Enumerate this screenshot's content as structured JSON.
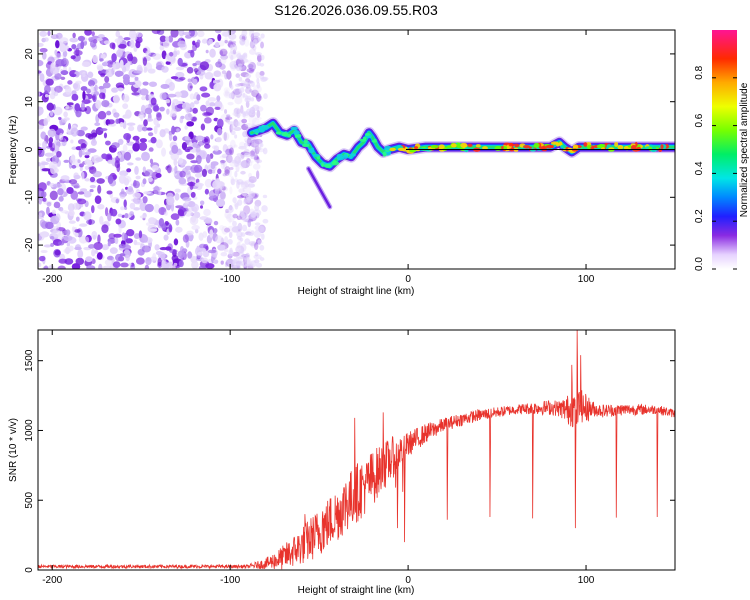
{
  "title": "S126.2026.036.09.55.R03",
  "chart_data": [
    {
      "type": "heatmap",
      "name": "spectrogram",
      "xlabel": "Height of straight line (km)",
      "ylabel": "Frequency (Hz)",
      "xlim": [
        -208,
        150
      ],
      "ylim": [
        -25,
        25
      ],
      "xticks": [
        -200,
        -100,
        0,
        100
      ],
      "yticks": [
        -20,
        -10,
        0,
        10,
        20
      ],
      "colorbar": {
        "label": "Normalized spectral amplitude",
        "range": [
          0,
          1
        ],
        "ticks": [
          "0.0",
          "0.2",
          "0.4",
          "0.6",
          "0.8"
        ]
      },
      "noise_region_x": [
        -208,
        -88
      ],
      "line_trace": [
        [
          -88,
          3.5
        ],
        [
          -80,
          4.5
        ],
        [
          -76,
          5.5
        ],
        [
          -72,
          3.5
        ],
        [
          -68,
          3.0
        ],
        [
          -64,
          4.0
        ],
        [
          -60,
          1.5
        ],
        [
          -56,
          1.0
        ],
        [
          -52,
          -1.5
        ],
        [
          -48,
          -3.0
        ],
        [
          -44,
          -3.5
        ],
        [
          -40,
          -2.0
        ],
        [
          -36,
          -1.0
        ],
        [
          -32,
          -1.5
        ],
        [
          -28,
          0.5
        ],
        [
          -25,
          1.5
        ],
        [
          -22,
          3.5
        ],
        [
          -20,
          2.5
        ],
        [
          -17,
          0.5
        ],
        [
          -14,
          -0.5
        ],
        [
          -10,
          0.0
        ],
        [
          -5,
          0.5
        ],
        [
          0,
          0.0
        ],
        [
          10,
          0.5
        ],
        [
          20,
          0.5
        ],
        [
          40,
          0.5
        ],
        [
          60,
          0.5
        ],
        [
          80,
          0.5
        ],
        [
          85,
          1.5
        ],
        [
          88,
          0.5
        ],
        [
          92,
          -0.5
        ],
        [
          96,
          0.5
        ],
        [
          110,
          0.5
        ],
        [
          150,
          0.5
        ]
      ],
      "branch_trace": [
        [
          -56,
          -4
        ],
        [
          -50,
          -8
        ],
        [
          -44,
          -12
        ]
      ]
    },
    {
      "type": "line",
      "name": "snr",
      "xlabel": "Height of straight line (km)",
      "ylabel": "SNR (10 * v/v)",
      "xlim": [
        -208,
        150
      ],
      "ylim": [
        0,
        1720
      ],
      "xticks": [
        -200,
        -100,
        0,
        100
      ],
      "yticks": [
        0,
        500,
        1000,
        1500
      ],
      "series_color": "#e8332c",
      "envelope": [
        [
          -208,
          25
        ],
        [
          -90,
          25
        ],
        [
          -80,
          45
        ],
        [
          -70,
          90
        ],
        [
          -60,
          170
        ],
        [
          -50,
          270
        ],
        [
          -40,
          400
        ],
        [
          -30,
          540
        ],
        [
          -20,
          660
        ],
        [
          -10,
          790
        ],
        [
          0,
          900
        ],
        [
          10,
          980
        ],
        [
          20,
          1040
        ],
        [
          30,
          1080
        ],
        [
          40,
          1110
        ],
        [
          50,
          1130
        ],
        [
          60,
          1150
        ],
        [
          70,
          1160
        ],
        [
          80,
          1165
        ],
        [
          90,
          1150
        ],
        [
          100,
          1160
        ],
        [
          110,
          1140
        ],
        [
          120,
          1150
        ],
        [
          140,
          1150
        ],
        [
          150,
          1120
        ]
      ],
      "noise_amplitude": [
        [
          -208,
          12
        ],
        [
          -90,
          12
        ],
        [
          -80,
          40
        ],
        [
          -70,
          90
        ],
        [
          -55,
          160
        ],
        [
          -40,
          200
        ],
        [
          -25,
          220
        ],
        [
          -10,
          160
        ],
        [
          0,
          90
        ],
        [
          20,
          50
        ],
        [
          60,
          35
        ],
        [
          85,
          60
        ],
        [
          95,
          160
        ],
        [
          105,
          50
        ],
        [
          150,
          30
        ]
      ],
      "spikes_up": [
        [
          -58,
          400
        ],
        [
          -48,
          420
        ],
        [
          -35,
          620
        ],
        [
          -30,
          1090
        ],
        [
          -24,
          580
        ],
        [
          -14,
          1130
        ],
        [
          -7,
          590
        ],
        [
          -3,
          560
        ],
        [
          92,
          1470
        ],
        [
          95,
          1720
        ],
        [
          97,
          1540
        ]
      ],
      "dips": [
        [
          -6,
          300
        ],
        [
          -2,
          200
        ],
        [
          22,
          360
        ],
        [
          46,
          380
        ],
        [
          70,
          370
        ],
        [
          94,
          300
        ],
        [
          117,
          375
        ],
        [
          140,
          380
        ]
      ]
    }
  ]
}
